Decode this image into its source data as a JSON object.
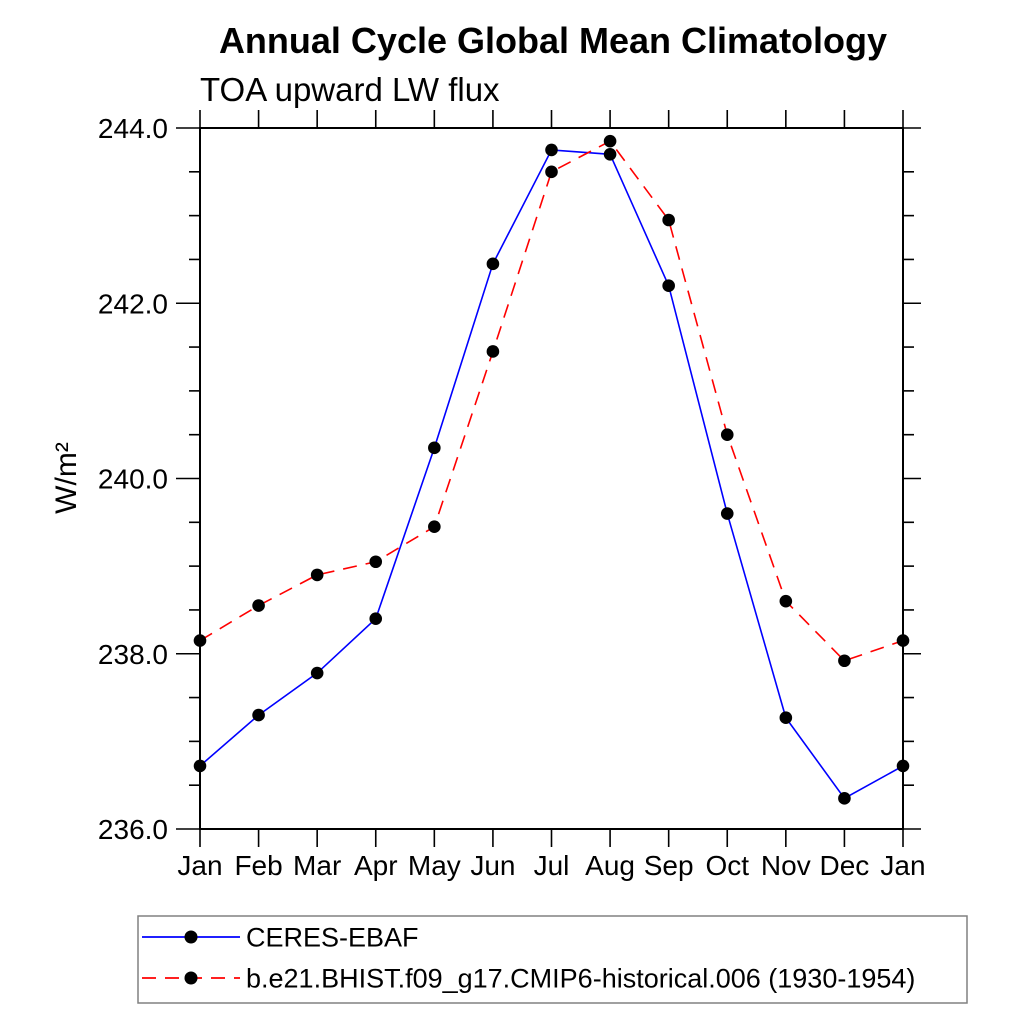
{
  "chart_data": {
    "type": "line",
    "title": "Annual Cycle Global Mean Climatology",
    "subtitle": "TOA upward LW flux",
    "xlabel": "",
    "ylabel": "W/m²",
    "categories": [
      "Jan",
      "Feb",
      "Mar",
      "Apr",
      "May",
      "Jun",
      "Jul",
      "Aug",
      "Sep",
      "Oct",
      "Nov",
      "Dec",
      "Jan"
    ],
    "ylim": [
      236.0,
      244.0
    ],
    "ytick_major_interval": 2.0,
    "ytick_minor_interval": 0.5,
    "ytick_labels": [
      "236.0",
      "238.0",
      "240.0",
      "242.0",
      "244.0"
    ],
    "grid": false,
    "legend_position": "bottom-left-box",
    "frame": "closed-box-outward-ticks",
    "marker": "filled-circle",
    "marker_color": "#000000",
    "series": [
      {
        "name": "CERES-EBAF",
        "color": "#0000ff",
        "style": "solid",
        "values": [
          236.72,
          237.3,
          237.78,
          238.4,
          240.35,
          242.45,
          243.75,
          243.7,
          242.2,
          239.6,
          237.27,
          236.35,
          236.72
        ]
      },
      {
        "name": "b.e21.BHIST.f09_g17.CMIP6-historical.006 (1930-1954)",
        "color": "#ff0000",
        "style": "dashed",
        "values": [
          238.15,
          238.55,
          238.9,
          239.05,
          239.45,
          241.45,
          243.5,
          243.85,
          242.95,
          240.5,
          238.6,
          237.92,
          238.15
        ]
      }
    ]
  }
}
